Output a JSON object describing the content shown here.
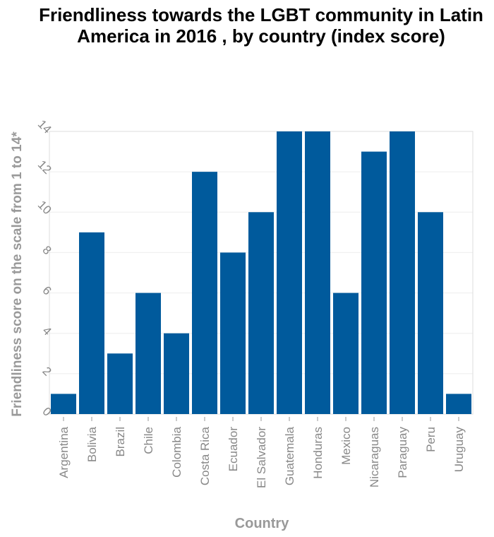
{
  "chart_data": {
    "type": "bar",
    "title": "Friendliness towards the LGBT community in Latin America in 2016 , by country (index score)",
    "xlabel": "Country",
    "ylabel": "Friendliness score on the scale from 1 to 14*",
    "categories": [
      "Argentina",
      "Bolivia",
      "Brazil",
      "Chile",
      "Colombia",
      "Costa Rica",
      "Ecuador",
      "El Salvador",
      "Guatemala",
      "Honduras",
      "Mexico",
      "Nicaraguas",
      "Paraguay",
      "Peru",
      "Uruguay"
    ],
    "values": [
      1,
      9,
      3,
      6,
      4,
      12,
      8,
      10,
      14,
      14,
      6,
      13,
      14,
      10,
      1
    ],
    "ylim": [
      0,
      14
    ],
    "yticks": [
      0,
      2,
      4,
      6,
      8,
      10,
      12,
      14
    ],
    "grid": true,
    "bar_color": "#005a9c"
  }
}
